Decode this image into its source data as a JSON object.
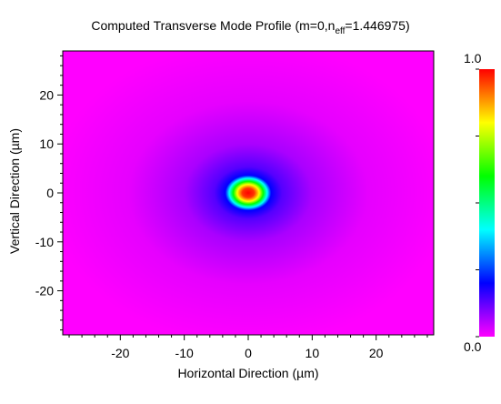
{
  "chart_data": {
    "type": "heatmap",
    "title_prefix": "Computed Transverse Mode Profile (m=0,n",
    "title_sub": "eff",
    "title_suffix": "=1.446975)",
    "xlabel": "Horizontal Direction (µm)",
    "ylabel": "Vertical Direction (µm)",
    "xlim": [
      -29,
      29
    ],
    "ylim": [
      -29,
      29
    ],
    "xticks": [
      -20,
      -10,
      0,
      10,
      20
    ],
    "yticks": [
      20,
      10,
      0,
      -10,
      -20
    ],
    "xtick_labels": [
      "-20",
      "-10",
      "0",
      "10",
      "20"
    ],
    "ytick_labels": [
      "20",
      "10",
      "0",
      "-10",
      "-20"
    ],
    "colorbar_min_label": "0.0",
    "colorbar_max_label": "1.0",
    "colorbar_range": [
      0.0,
      1.0
    ],
    "colorscale": [
      "#ff00ff",
      "#0000ff",
      "#00ffff",
      "#00ff00",
      "#ffff00",
      "#ff0000"
    ],
    "mode_center": [
      0,
      0
    ],
    "mode_width_um": 3.6,
    "mode_tail_um": 12
  }
}
